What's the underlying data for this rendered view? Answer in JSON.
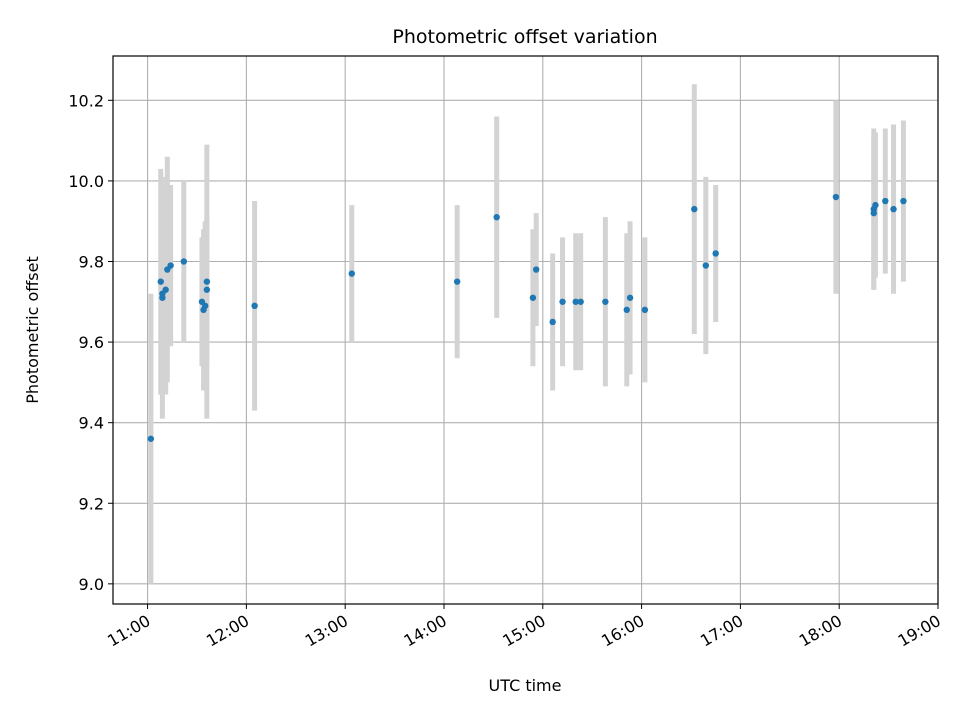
{
  "chart_data": {
    "type": "scatter",
    "title": "Photometric offset variation",
    "xlabel": "UTC time",
    "ylabel": "Photometric offset",
    "grid": true,
    "legend": "none",
    "x_is_time": true,
    "xlim": [
      "10:39",
      "19:00"
    ],
    "ylim": [
      8.95,
      10.31
    ],
    "xticks": [
      "11:00",
      "12:00",
      "13:00",
      "14:00",
      "15:00",
      "16:00",
      "17:00",
      "18:00",
      "19:00"
    ],
    "yticks": [
      9.0,
      9.2,
      9.4,
      9.6,
      9.8,
      10.0,
      10.2
    ],
    "ytick_labels": [
      "9.0",
      "9.2",
      "9.4",
      "9.6",
      "9.8",
      "10.0",
      "10.2"
    ],
    "colors": {
      "points": "#1f77b4",
      "errorbars": "#d3d3d3",
      "grid": "#b0b0b0"
    },
    "points": [
      {
        "x": "11:02",
        "y": 9.36,
        "err": 0.36
      },
      {
        "x": "11:08",
        "y": 9.75,
        "err": 0.28
      },
      {
        "x": "11:09",
        "y": 9.72,
        "err": 0.25
      },
      {
        "x": "11:09",
        "y": 9.71,
        "err": 0.3
      },
      {
        "x": "11:11",
        "y": 9.73,
        "err": 0.26
      },
      {
        "x": "11:12",
        "y": 9.78,
        "err": 0.28
      },
      {
        "x": "11:14",
        "y": 9.79,
        "err": 0.2
      },
      {
        "x": "11:22",
        "y": 9.8,
        "err": 0.2
      },
      {
        "x": "11:33",
        "y": 9.7,
        "err": 0.16
      },
      {
        "x": "11:34",
        "y": 9.68,
        "err": 0.2
      },
      {
        "x": "11:35",
        "y": 9.69,
        "err": 0.21
      },
      {
        "x": "11:36",
        "y": 9.73,
        "err": 0.18
      },
      {
        "x": "11:36",
        "y": 9.75,
        "err": 0.34
      },
      {
        "x": "12:05",
        "y": 9.69,
        "err": 0.26
      },
      {
        "x": "13:04",
        "y": 9.77,
        "err": 0.17
      },
      {
        "x": "14:08",
        "y": 9.75,
        "err": 0.19
      },
      {
        "x": "14:32",
        "y": 9.91,
        "err": 0.25
      },
      {
        "x": "14:54",
        "y": 9.71,
        "err": 0.17
      },
      {
        "x": "14:56",
        "y": 9.78,
        "err": 0.14
      },
      {
        "x": "15:06",
        "y": 9.65,
        "err": 0.17
      },
      {
        "x": "15:12",
        "y": 9.7,
        "err": 0.16
      },
      {
        "x": "15:20",
        "y": 9.7,
        "err": 0.17
      },
      {
        "x": "15:23",
        "y": 9.7,
        "err": 0.17
      },
      {
        "x": "15:38",
        "y": 9.7,
        "err": 0.21
      },
      {
        "x": "15:51",
        "y": 9.68,
        "err": 0.19
      },
      {
        "x": "15:53",
        "y": 9.71,
        "err": 0.19
      },
      {
        "x": "16:02",
        "y": 9.68,
        "err": 0.18
      },
      {
        "x": "16:32",
        "y": 9.93,
        "err": 0.31
      },
      {
        "x": "16:39",
        "y": 9.79,
        "err": 0.22
      },
      {
        "x": "16:45",
        "y": 9.82,
        "err": 0.17
      },
      {
        "x": "17:58",
        "y": 9.96,
        "err": 0.24
      },
      {
        "x": "18:21",
        "y": 9.93,
        "err": 0.2
      },
      {
        "x": "18:21",
        "y": 9.92,
        "err": 0.19
      },
      {
        "x": "18:22",
        "y": 9.94,
        "err": 0.18
      },
      {
        "x": "18:28",
        "y": 9.95,
        "err": 0.18
      },
      {
        "x": "18:33",
        "y": 9.93,
        "err": 0.21
      },
      {
        "x": "18:39",
        "y": 9.95,
        "err": 0.2
      }
    ]
  }
}
